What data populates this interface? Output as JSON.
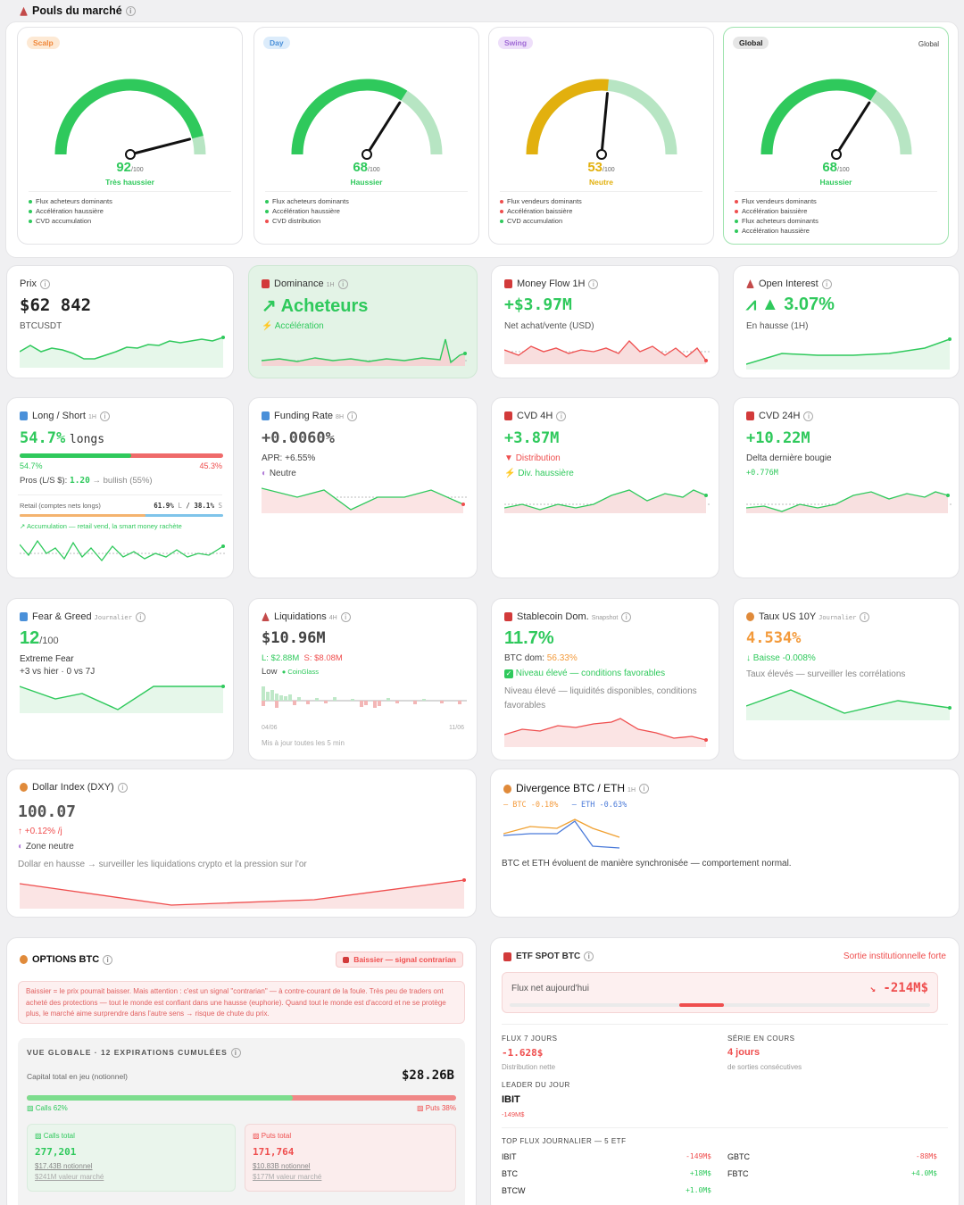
{
  "header": {
    "title": "Pouls du marché",
    "icon": "flask-icon"
  },
  "gauges": [
    {
      "pill": "Scalp",
      "value": "92",
      "max": "/100",
      "label": "Très haussier",
      "color": "#2fc95c",
      "score": 92,
      "bullets": [
        [
          "g",
          "Flux acheteurs dominants"
        ],
        [
          "g",
          "Accélération haussière"
        ],
        [
          "g",
          "CVD accumulation"
        ]
      ],
      "pill_bg": "#fde9d4",
      "pill_fg": "#f0883b"
    },
    {
      "pill": "Day",
      "value": "68",
      "max": "/100",
      "label": "Haussier",
      "color": "#2fc95c",
      "score": 68,
      "bullets": [
        [
          "g",
          "Flux acheteurs dominants"
        ],
        [
          "g",
          "Accélération haussière"
        ],
        [
          "r",
          "CVD distribution"
        ]
      ],
      "pill_bg": "#dcecfb",
      "pill_fg": "#4a90d9"
    },
    {
      "pill": "Swing",
      "value": "53",
      "max": "/100",
      "label": "Neutre",
      "color": "#e2b00e",
      "score": 53,
      "bullets": [
        [
          "r",
          "Flux vendeurs dominants"
        ],
        [
          "r",
          "Accélération baissière"
        ],
        [
          "g",
          "CVD accumulation"
        ]
      ],
      "pill_bg": "#eedffa",
      "pill_fg": "#a06ad6"
    },
    {
      "pill": "Global",
      "value": "68",
      "max": "/100",
      "label": "Haussier",
      "color": "#2fc95c",
      "score": 68,
      "right": "Global",
      "bullets": [
        [
          "r",
          "Flux vendeurs dominants"
        ],
        [
          "r",
          "Accélération baissière"
        ],
        [
          "g",
          "Flux acheteurs dominants"
        ],
        [
          "g",
          "Accélération haussière"
        ]
      ],
      "pill_bg": "#e6e6e6",
      "pill_fg": "#222"
    }
  ],
  "prix": {
    "title": "Prix",
    "value": "$62 842",
    "pair": "BTCUSDT"
  },
  "dominance": {
    "title": "Dominance",
    "sub": "1H",
    "value": "Acheteurs",
    "note": "Accélération"
  },
  "money": {
    "title": "Money Flow 1H",
    "value": "+$3.97M",
    "note": "Net achat/vente (USD)"
  },
  "oi": {
    "title": "Open Interest",
    "value": "3.07%",
    "note": "En hausse (1H)"
  },
  "ls": {
    "title": "Long / Short",
    "sub": "1H",
    "value": "54.7%",
    "unit": "longs",
    "long_pct": "54.7%",
    "short_pct": "45.3%",
    "long_ratio": 0.547,
    "pros_label": "Pros (L/S $):",
    "pros_val": "1.20",
    "pros_tail": "→ bullish (55%)",
    "retail_label": "Retail (comptes nets longs)",
    "retail_l": "61.9%",
    "retail_l_suffix": "L",
    "retail_sep": "/",
    "retail_s": "38.1%",
    "retail_s_suffix": "S",
    "retail_ratio": 0.619,
    "footnote": "↗ Accumulation — retail vend, la smart money rachète"
  },
  "funding": {
    "title": "Funding Rate",
    "sub": "8H",
    "value": "+0.0060%",
    "apr": "APR: +6.55%",
    "state": "Neutre"
  },
  "cvd4": {
    "title": "CVD 4H",
    "value": "+3.87M",
    "n1": "Distribution",
    "n2": "Div. haussière"
  },
  "cvd24": {
    "title": "CVD 24H",
    "value": "+10.22M",
    "note": "Delta dernière bougie",
    "delta": "+0.776M"
  },
  "fg": {
    "title": "Fear & Greed",
    "sub": "Journalier",
    "value": "12",
    "max": "/100",
    "state": "Extreme Fear",
    "cmp": "+3 vs hier · 0 vs 7J"
  },
  "liq": {
    "title": "Liquidations",
    "sub": "4H",
    "value": "$10.96M",
    "l": "L: $2.88M",
    "s": "S: $8.08M",
    "level": "Low",
    "source": "CoinGlass",
    "d1": "04/06",
    "d2": "11/06",
    "update": "Mis à jour toutes les 5 min"
  },
  "stable": {
    "title": "Stablecoin Dom.",
    "sub": "Snapshot",
    "value": "11.7%",
    "btc_label": "BTC dom:",
    "btc_val": "56.33%",
    "check": "Niveau élevé — conditions favorables",
    "desc": "Niveau élevé — liquidités disponibles, conditions favorables"
  },
  "us10": {
    "title": "Taux US 10Y",
    "sub": "Journalier",
    "value": "4.534%",
    "change": "↓ Baisse -0.008%",
    "desc": "Taux élevés — surveiller les corrélations"
  },
  "dxy": {
    "title": "Dollar Index (DXY)",
    "value": "100.07",
    "change": "↑ +0.12% /j",
    "zone": "Zone neutre",
    "desc": "Dollar en hausse → surveiller les liquidations crypto et la pression sur l'or"
  },
  "div": {
    "title": "Divergence BTC / ETH",
    "sub": "1H",
    "btc": "— BTC -0.18%",
    "eth": "— ETH -0.63%",
    "desc": "BTC et ETH évoluent de manière synchronisée — comportement normal."
  },
  "options": {
    "title": "OPTIONS BTC",
    "badge": "Baissier — signal contrarian",
    "warn": "Baissier = le prix pourrait baisser. Mais attention : c'est un signal \"contrarian\" — à contre-courant de la foule. Très peu de traders ont acheté des protections — tout le monde est confiant dans une hausse (euphorie). Quand tout le monde est d'accord et ne se protège plus, le marché aime surprendre dans l'autre sens → risque de chute du prix.",
    "vue": "VUE GLOBALE · 12 EXPIRATIONS CUMULÉES",
    "cap_label": "Capital total en jeu (notionnel)",
    "cap_val": "$28.26B",
    "calls_pct": "Calls 62%",
    "puts_pct": "Puts 38%",
    "calls_ratio": 0.62,
    "calls_t": "Calls total",
    "calls_v": "277,201",
    "calls_n": "$17.43B notionnel",
    "calls_m": "$241M valeur marché",
    "puts_t": "Puts total",
    "puts_v": "171,764",
    "puts_n": "$10.83B notionnel",
    "puts_m": "$177M valeur marché"
  },
  "etf": {
    "title": "ETF SPOT BTC",
    "status": "Sortie institutionnelle forte",
    "flux_label": "Flux net aujourd'hui",
    "flux_val": "-214M$",
    "f7_label": "FLUX 7 JOURS",
    "f7_val": "-1.628$",
    "f7_note": "Distribution nette",
    "serie_label": "SÉRIE EN COURS",
    "serie_val": "4 jours",
    "serie_note": "de sorties consécutives",
    "leader_label": "LEADER DU JOUR",
    "leader_val": "IBIT",
    "leader_note": "-149M$",
    "top_label": "TOP FLUX JOURNALIER — 5 ETF",
    "rows": [
      [
        "IBIT",
        "-149M$",
        "r"
      ],
      [
        "GBTC",
        "-88M$",
        "r"
      ],
      [
        "BTC",
        "+18M$",
        "g"
      ],
      [
        "FBTC",
        "+4.0M$",
        "g"
      ],
      [
        "BTCW",
        "+1.0M$",
        "g"
      ]
    ]
  }
}
